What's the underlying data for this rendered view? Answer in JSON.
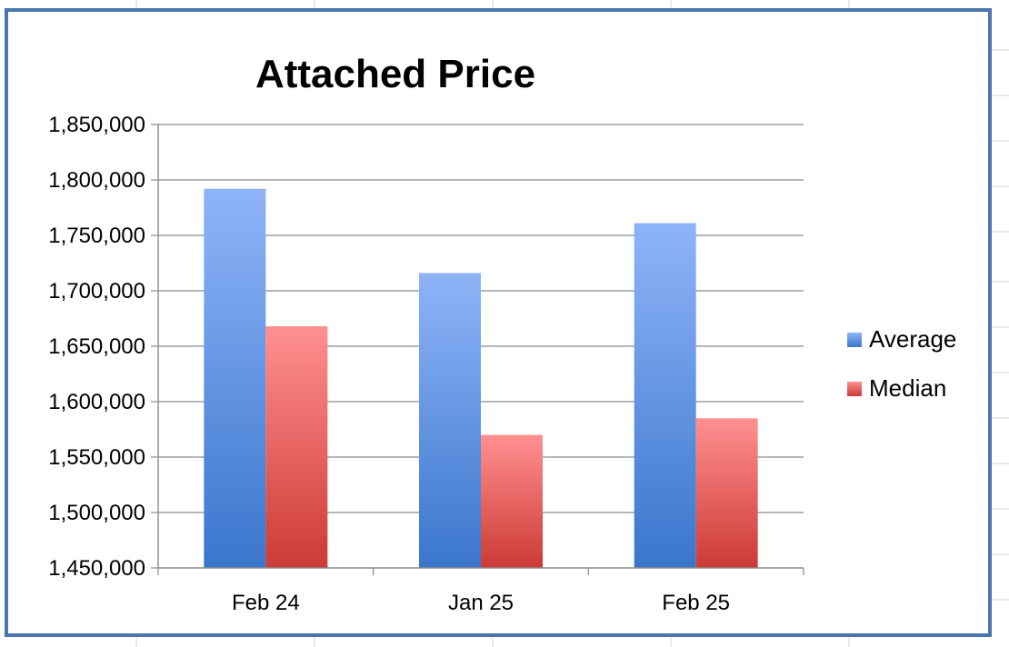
{
  "chart_data": {
    "type": "bar",
    "title": "Attached Price",
    "categories": [
      "Feb 24",
      "Jan  25",
      "Feb  25"
    ],
    "series": [
      {
        "name": "Average",
        "values": [
          1792000,
          1716000,
          1761000
        ]
      },
      {
        "name": "Median",
        "values": [
          1668000,
          1570000,
          1585000
        ]
      }
    ],
    "ylim": [
      1450000,
      1850000
    ],
    "yticks": [
      1450000,
      1500000,
      1550000,
      1600000,
      1650000,
      1700000,
      1750000,
      1800000,
      1850000
    ],
    "ytick_labels": [
      "1,450,000",
      "1,500,000",
      "1,550,000",
      "1,600,000",
      "1,650,000",
      "1,700,000",
      "1,750,000",
      "1,800,000",
      "1,850,000"
    ],
    "grid": true,
    "legend_position": "right",
    "colors": {
      "Average": {
        "light": "#8eb4f8",
        "dark": "#3a76cc"
      },
      "Median": {
        "light": "#ff9090",
        "dark": "#cc3a35"
      }
    }
  }
}
